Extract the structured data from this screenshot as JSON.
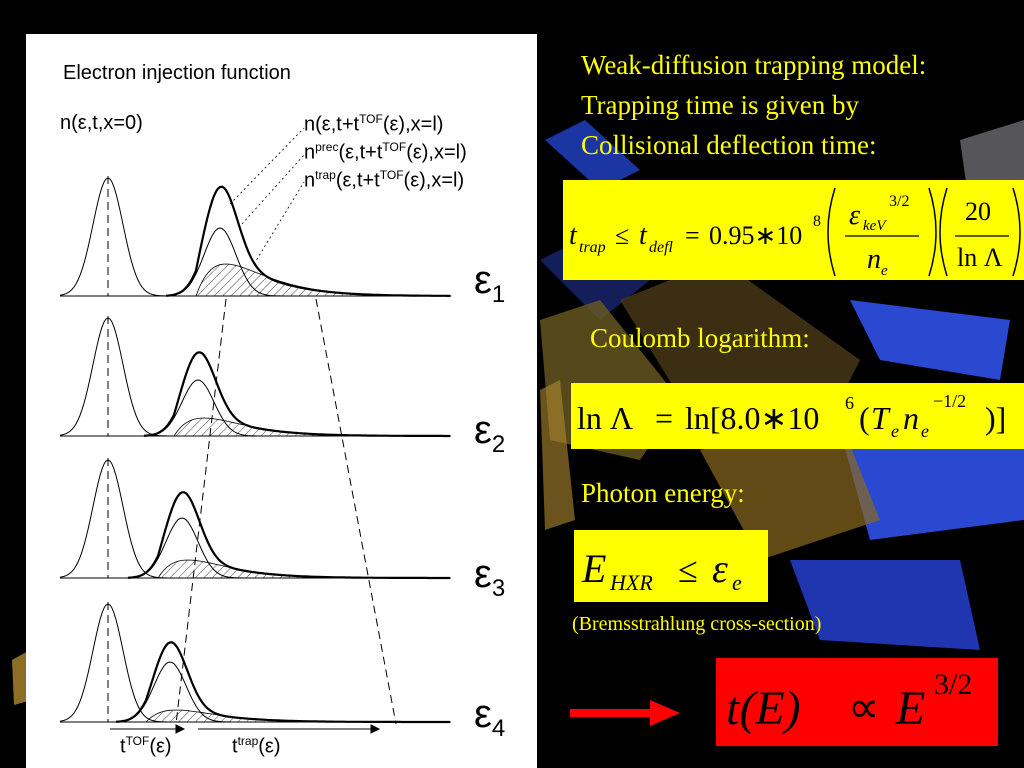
{
  "panel": {
    "title": "Electron injection function",
    "left_label": "n(ε,t,x=0)",
    "right_labels": [
      {
        "base": "n(ε,t+t",
        "sup": "TOF",
        "tail": "(ε),x=l)"
      },
      {
        "base": "n",
        "sup": "prec",
        "mid": "(ε,t+t",
        "sup2": "TOF",
        "tail": "(ε),x=l)"
      },
      {
        "base": "n",
        "sup": "trap",
        "mid": "(ε,t+t",
        "sup2": "TOF",
        "tail": "(ε),x=l)"
      }
    ],
    "energy_labels": [
      "ε",
      "ε",
      "ε",
      "ε"
    ],
    "energy_subs": [
      "1",
      "2",
      "3",
      "4"
    ],
    "axis_tof": {
      "base": "t",
      "sup": "TOF",
      "tail": "(ε)"
    },
    "axis_trap": {
      "base": "t",
      "sup": "trap",
      "tail": "(ε)"
    }
  },
  "text": {
    "heading_line1": "Weak-diffusion trapping model:",
    "heading_line2": "Trapping time is given by",
    "heading_line3": "Collisional deflection time:",
    "coulomb_label": "Coulomb logarithm:",
    "photon_label": "Photon energy:",
    "brems_note": "(Bremsstrahlung cross-section)"
  },
  "formulas": {
    "f1": {
      "lhs_t": "t",
      "lhs_sub": "trap",
      "leq": "≤",
      "t2": "t",
      "t2_sub": "defl",
      "eq": "=",
      "coef": "0.95∗10",
      "exp": "8",
      "num_eps": "ε",
      "num_sub": "keV",
      "num_exp": "3/2",
      "den": "n",
      "den_sub": "e",
      "frac2_num": "20",
      "frac2_den": "ln Λ"
    },
    "f2": {
      "lhs": "ln Λ",
      "eq": "=",
      "rhs_pre": "ln[8.0∗10",
      "exp": "6",
      "paren_open": "(",
      "T": "T",
      "T_sub": "e",
      "n": "n",
      "n_sub": "e",
      "n_exp": "−1/2",
      "close": ")]"
    },
    "f3": {
      "E": "E",
      "E_sub": "HXR",
      "leq": "≤",
      "eps": "ε",
      "eps_sub": "e"
    },
    "f4": {
      "lhs": "t(E)",
      "prop": "∝",
      "E": "E",
      "exp": "3/2"
    }
  },
  "colors": {
    "background": "#000000",
    "panel": "#ffffff",
    "text_yellow": "#ffff00",
    "box_yellow": "#ffff00",
    "box_red": "#ff0000",
    "arrow_red": "#ff0000"
  }
}
